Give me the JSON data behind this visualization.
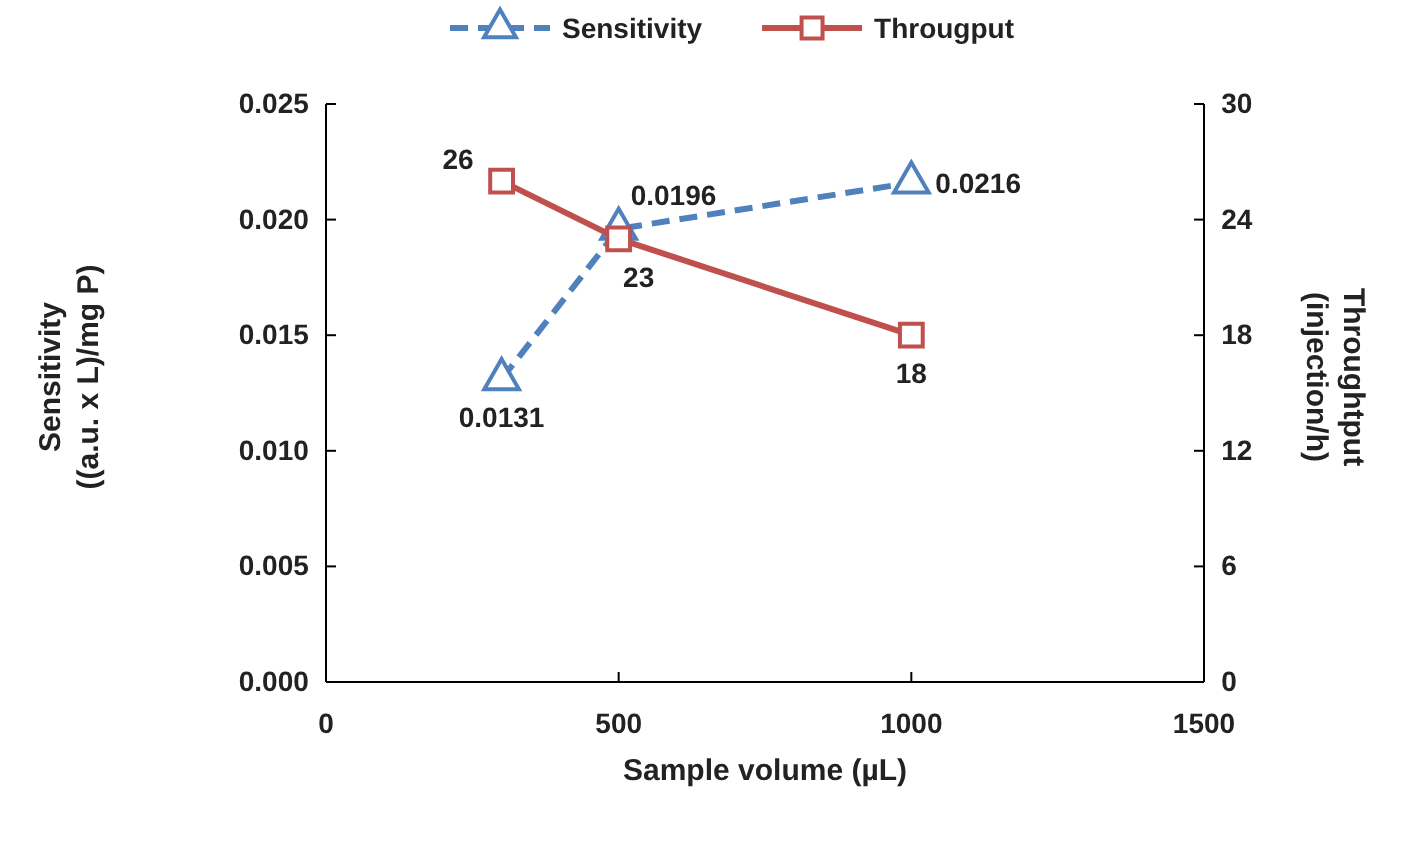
{
  "chart_data": {
    "type": "line",
    "xlabel": "Sample volume (µL)",
    "ylabel": "Sensitivity\n((a.u. x L)/mg P)",
    "y2label": "Throughtput\n(injection/h)",
    "x": [
      300,
      500,
      1000
    ],
    "xlim": [
      0,
      1500
    ],
    "xticks": [
      0,
      500,
      1000,
      1500
    ],
    "ylim": [
      0,
      0.025
    ],
    "yticks": [
      {
        "value": 0,
        "label": "0.000"
      },
      {
        "value": 0.005,
        "label": "0.005"
      },
      {
        "value": 0.01,
        "label": "0.010"
      },
      {
        "value": 0.015,
        "label": "0.015"
      },
      {
        "value": 0.02,
        "label": "0.020"
      },
      {
        "value": 0.025,
        "label": "0.025"
      }
    ],
    "y2lim": [
      0,
      30
    ],
    "y2ticks": [
      0,
      6,
      12,
      18,
      24,
      30
    ],
    "series": [
      {
        "name": "Sensitivity",
        "color": "#4f81bd",
        "values": [
          0.0131,
          0.0196,
          0.0216
        ],
        "marker": "triangle",
        "line_style": "dashed"
      },
      {
        "name": "Througput",
        "color": "#c0504d",
        "values": [
          26,
          23,
          18
        ],
        "marker": "square",
        "line_style": "solid",
        "axis": "y2"
      }
    ],
    "data_labels": true,
    "legend": "top",
    "grid": false
  }
}
